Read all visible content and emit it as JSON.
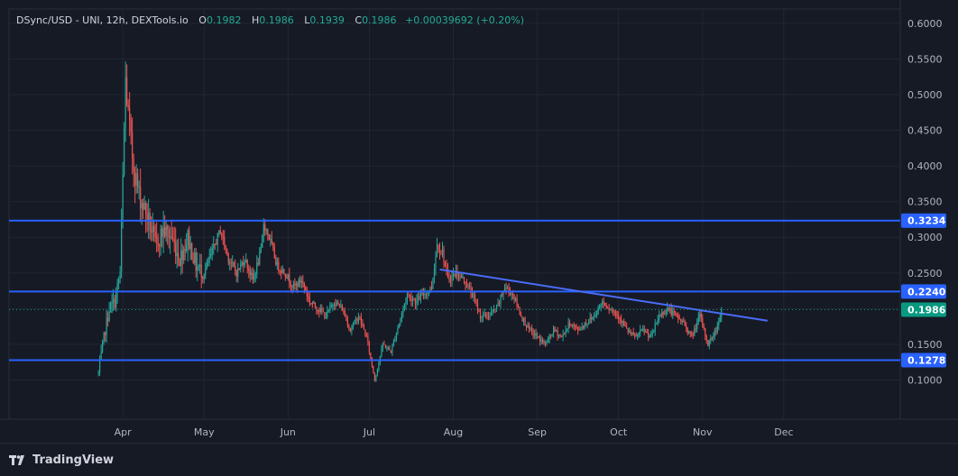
{
  "header": {
    "symbol": "DSync/USD - UNI, 12h, DEXTools.io",
    "o_label": "O",
    "o_value": "0.1982",
    "h_label": "H",
    "h_value": "0.1986",
    "l_label": "L",
    "l_value": "0.1939",
    "c_label": "C",
    "c_value": "0.1986",
    "change": "+0.00039692 (+0.20%)"
  },
  "brand": {
    "name": "TradingView",
    "icon": "tradingview-logo-icon"
  },
  "colors": {
    "background": "#161a25",
    "up": "#26a69a",
    "down": "#ef5350",
    "line": "#2962ff",
    "trend": "#4a6cf7",
    "last_price": "#089981"
  },
  "chart_data": {
    "type": "candlestick",
    "ylim": [
      0.045,
      0.62
    ],
    "y_ticks": [
      "0.6000",
      "0.5500",
      "0.5000",
      "0.4500",
      "0.4000",
      "0.3500",
      "0.3000",
      "0.2500",
      "0.2000",
      "0.1500",
      "0.1000"
    ],
    "x_labels": [
      {
        "label": "Apr",
        "x": 0.0
      },
      {
        "label": "May",
        "x": 30
      },
      {
        "label": "Jun",
        "x": 61
      },
      {
        "label": "Jul",
        "x": 91
      },
      {
        "label": "Aug",
        "x": 122
      },
      {
        "label": "Sep",
        "x": 153
      },
      {
        "label": "Oct",
        "x": 183
      },
      {
        "label": "Nov",
        "x": 214
      },
      {
        "label": "Dec",
        "x": 244
      }
    ],
    "x_range": [
      -42,
      287
    ],
    "horizontal_levels": [
      {
        "value": 0.3234,
        "label": "0.3234"
      },
      {
        "value": 0.224,
        "label": "0.2240"
      },
      {
        "value": 0.1278,
        "label": "0.1278"
      }
    ],
    "last_price": {
      "value": 0.1986,
      "label": "0.1986"
    },
    "trendline": {
      "x1": 117,
      "y1": 0.255,
      "x2": 238,
      "y2": 0.183
    },
    "anchors": [
      [
        -9,
        0.11
      ],
      [
        -7,
        0.16
      ],
      [
        -5,
        0.2
      ],
      [
        -3,
        0.21
      ],
      [
        -1,
        0.25
      ],
      [
        0,
        0.38
      ],
      [
        1,
        0.52
      ],
      [
        2,
        0.47
      ],
      [
        3,
        0.43
      ],
      [
        4,
        0.4
      ],
      [
        6,
        0.36
      ],
      [
        9,
        0.33
      ],
      [
        12,
        0.29
      ],
      [
        15,
        0.31
      ],
      [
        18,
        0.3
      ],
      [
        21,
        0.27
      ],
      [
        24,
        0.3
      ],
      [
        27,
        0.26
      ],
      [
        30,
        0.25
      ],
      [
        33,
        0.28
      ],
      [
        36,
        0.31
      ],
      [
        39,
        0.27
      ],
      [
        42,
        0.25
      ],
      [
        45,
        0.27
      ],
      [
        48,
        0.24
      ],
      [
        51,
        0.28
      ],
      [
        52,
        0.32
      ],
      [
        54,
        0.3
      ],
      [
        57,
        0.26
      ],
      [
        60,
        0.25
      ],
      [
        63,
        0.23
      ],
      [
        66,
        0.24
      ],
      [
        69,
        0.21
      ],
      [
        72,
        0.2
      ],
      [
        75,
        0.19
      ],
      [
        78,
        0.21
      ],
      [
        81,
        0.2
      ],
      [
        84,
        0.17
      ],
      [
        87,
        0.19
      ],
      [
        90,
        0.16
      ],
      [
        93,
        0.1
      ],
      [
        96,
        0.15
      ],
      [
        99,
        0.14
      ],
      [
        102,
        0.18
      ],
      [
        105,
        0.22
      ],
      [
        108,
        0.21
      ],
      [
        111,
        0.22
      ],
      [
        114,
        0.23
      ],
      [
        116,
        0.29
      ],
      [
        118,
        0.28
      ],
      [
        120,
        0.24
      ],
      [
        123,
        0.25
      ],
      [
        126,
        0.24
      ],
      [
        129,
        0.22
      ],
      [
        132,
        0.19
      ],
      [
        135,
        0.19
      ],
      [
        138,
        0.2
      ],
      [
        141,
        0.23
      ],
      [
        144,
        0.22
      ],
      [
        147,
        0.19
      ],
      [
        150,
        0.17
      ],
      [
        153,
        0.16
      ],
      [
        156,
        0.15
      ],
      [
        159,
        0.17
      ],
      [
        162,
        0.16
      ],
      [
        165,
        0.18
      ],
      [
        168,
        0.17
      ],
      [
        171,
        0.18
      ],
      [
        174,
        0.19
      ],
      [
        177,
        0.21
      ],
      [
        180,
        0.2
      ],
      [
        183,
        0.19
      ],
      [
        186,
        0.17
      ],
      [
        189,
        0.16
      ],
      [
        192,
        0.17
      ],
      [
        195,
        0.16
      ],
      [
        198,
        0.19
      ],
      [
        201,
        0.2
      ],
      [
        204,
        0.19
      ],
      [
        207,
        0.18
      ],
      [
        210,
        0.16
      ],
      [
        213,
        0.19
      ],
      [
        216,
        0.15
      ],
      [
        219,
        0.17
      ],
      [
        221,
        0.1986
      ]
    ]
  }
}
